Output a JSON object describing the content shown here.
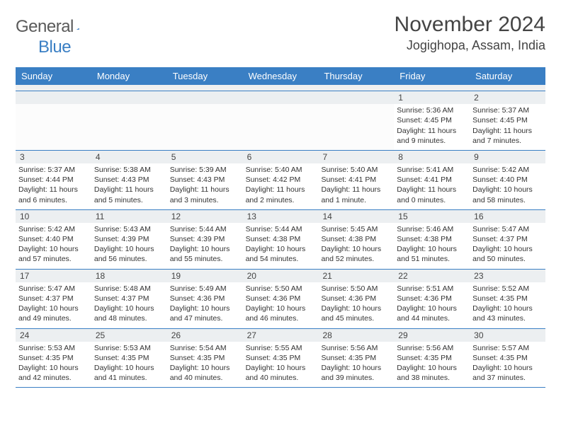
{
  "logo": {
    "word1": "General",
    "word2": "Blue"
  },
  "title": "November 2024",
  "location": "Jogighopa, Assam, India",
  "colors": {
    "header_bg": "#3a7fc4",
    "header_text": "#ffffff",
    "daynum_bg": "#eceff1",
    "body_text": "#333333",
    "title_text": "#444444",
    "rule": "#3a7fc4"
  },
  "typography": {
    "title_fontsize": 30,
    "location_fontsize": 18,
    "header_fontsize": 13,
    "cell_fontsize": 10.5
  },
  "day_names": [
    "Sunday",
    "Monday",
    "Tuesday",
    "Wednesday",
    "Thursday",
    "Friday",
    "Saturday"
  ],
  "weeks": [
    [
      {
        "n": "",
        "lines": []
      },
      {
        "n": "",
        "lines": []
      },
      {
        "n": "",
        "lines": []
      },
      {
        "n": "",
        "lines": []
      },
      {
        "n": "",
        "lines": []
      },
      {
        "n": "1",
        "lines": [
          "Sunrise: 5:36 AM",
          "Sunset: 4:45 PM",
          "Daylight: 11 hours",
          "and 9 minutes."
        ]
      },
      {
        "n": "2",
        "lines": [
          "Sunrise: 5:37 AM",
          "Sunset: 4:45 PM",
          "Daylight: 11 hours",
          "and 7 minutes."
        ]
      }
    ],
    [
      {
        "n": "3",
        "lines": [
          "Sunrise: 5:37 AM",
          "Sunset: 4:44 PM",
          "Daylight: 11 hours",
          "and 6 minutes."
        ]
      },
      {
        "n": "4",
        "lines": [
          "Sunrise: 5:38 AM",
          "Sunset: 4:43 PM",
          "Daylight: 11 hours",
          "and 5 minutes."
        ]
      },
      {
        "n": "5",
        "lines": [
          "Sunrise: 5:39 AM",
          "Sunset: 4:43 PM",
          "Daylight: 11 hours",
          "and 3 minutes."
        ]
      },
      {
        "n": "6",
        "lines": [
          "Sunrise: 5:40 AM",
          "Sunset: 4:42 PM",
          "Daylight: 11 hours",
          "and 2 minutes."
        ]
      },
      {
        "n": "7",
        "lines": [
          "Sunrise: 5:40 AM",
          "Sunset: 4:41 PM",
          "Daylight: 11 hours",
          "and 1 minute."
        ]
      },
      {
        "n": "8",
        "lines": [
          "Sunrise: 5:41 AM",
          "Sunset: 4:41 PM",
          "Daylight: 11 hours",
          "and 0 minutes."
        ]
      },
      {
        "n": "9",
        "lines": [
          "Sunrise: 5:42 AM",
          "Sunset: 4:40 PM",
          "Daylight: 10 hours",
          "and 58 minutes."
        ]
      }
    ],
    [
      {
        "n": "10",
        "lines": [
          "Sunrise: 5:42 AM",
          "Sunset: 4:40 PM",
          "Daylight: 10 hours",
          "and 57 minutes."
        ]
      },
      {
        "n": "11",
        "lines": [
          "Sunrise: 5:43 AM",
          "Sunset: 4:39 PM",
          "Daylight: 10 hours",
          "and 56 minutes."
        ]
      },
      {
        "n": "12",
        "lines": [
          "Sunrise: 5:44 AM",
          "Sunset: 4:39 PM",
          "Daylight: 10 hours",
          "and 55 minutes."
        ]
      },
      {
        "n": "13",
        "lines": [
          "Sunrise: 5:44 AM",
          "Sunset: 4:38 PM",
          "Daylight: 10 hours",
          "and 54 minutes."
        ]
      },
      {
        "n": "14",
        "lines": [
          "Sunrise: 5:45 AM",
          "Sunset: 4:38 PM",
          "Daylight: 10 hours",
          "and 52 minutes."
        ]
      },
      {
        "n": "15",
        "lines": [
          "Sunrise: 5:46 AM",
          "Sunset: 4:38 PM",
          "Daylight: 10 hours",
          "and 51 minutes."
        ]
      },
      {
        "n": "16",
        "lines": [
          "Sunrise: 5:47 AM",
          "Sunset: 4:37 PM",
          "Daylight: 10 hours",
          "and 50 minutes."
        ]
      }
    ],
    [
      {
        "n": "17",
        "lines": [
          "Sunrise: 5:47 AM",
          "Sunset: 4:37 PM",
          "Daylight: 10 hours",
          "and 49 minutes."
        ]
      },
      {
        "n": "18",
        "lines": [
          "Sunrise: 5:48 AM",
          "Sunset: 4:37 PM",
          "Daylight: 10 hours",
          "and 48 minutes."
        ]
      },
      {
        "n": "19",
        "lines": [
          "Sunrise: 5:49 AM",
          "Sunset: 4:36 PM",
          "Daylight: 10 hours",
          "and 47 minutes."
        ]
      },
      {
        "n": "20",
        "lines": [
          "Sunrise: 5:50 AM",
          "Sunset: 4:36 PM",
          "Daylight: 10 hours",
          "and 46 minutes."
        ]
      },
      {
        "n": "21",
        "lines": [
          "Sunrise: 5:50 AM",
          "Sunset: 4:36 PM",
          "Daylight: 10 hours",
          "and 45 minutes."
        ]
      },
      {
        "n": "22",
        "lines": [
          "Sunrise: 5:51 AM",
          "Sunset: 4:36 PM",
          "Daylight: 10 hours",
          "and 44 minutes."
        ]
      },
      {
        "n": "23",
        "lines": [
          "Sunrise: 5:52 AM",
          "Sunset: 4:35 PM",
          "Daylight: 10 hours",
          "and 43 minutes."
        ]
      }
    ],
    [
      {
        "n": "24",
        "lines": [
          "Sunrise: 5:53 AM",
          "Sunset: 4:35 PM",
          "Daylight: 10 hours",
          "and 42 minutes."
        ]
      },
      {
        "n": "25",
        "lines": [
          "Sunrise: 5:53 AM",
          "Sunset: 4:35 PM",
          "Daylight: 10 hours",
          "and 41 minutes."
        ]
      },
      {
        "n": "26",
        "lines": [
          "Sunrise: 5:54 AM",
          "Sunset: 4:35 PM",
          "Daylight: 10 hours",
          "and 40 minutes."
        ]
      },
      {
        "n": "27",
        "lines": [
          "Sunrise: 5:55 AM",
          "Sunset: 4:35 PM",
          "Daylight: 10 hours",
          "and 40 minutes."
        ]
      },
      {
        "n": "28",
        "lines": [
          "Sunrise: 5:56 AM",
          "Sunset: 4:35 PM",
          "Daylight: 10 hours",
          "and 39 minutes."
        ]
      },
      {
        "n": "29",
        "lines": [
          "Sunrise: 5:56 AM",
          "Sunset: 4:35 PM",
          "Daylight: 10 hours",
          "and 38 minutes."
        ]
      },
      {
        "n": "30",
        "lines": [
          "Sunrise: 5:57 AM",
          "Sunset: 4:35 PM",
          "Daylight: 10 hours",
          "and 37 minutes."
        ]
      }
    ]
  ]
}
